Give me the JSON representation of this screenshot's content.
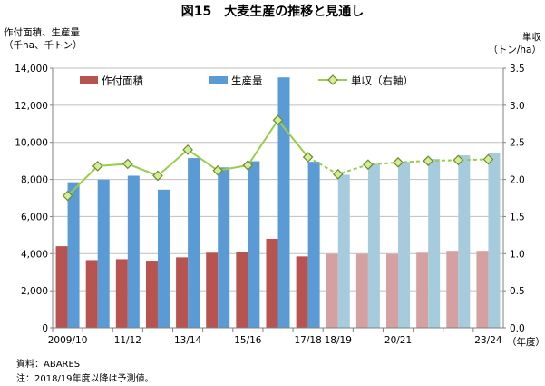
{
  "title": "図15　大麦生産の推移と見通し",
  "left_axis_title": [
    "作付面積、生産量",
    "（千ha、千トン）"
  ],
  "right_axis_title": [
    "単収",
    "（トン/ha）"
  ],
  "notes": {
    "source": "資料：ABARES",
    "forecast": "注：2018/19年度以降は予測値。"
  },
  "colors": {
    "area": "#b85450",
    "area_forecast": "#d4a0a0",
    "production": "#5b9bd5",
    "production_forecast": "#a6cbdc",
    "yield_line": "#9acd4a",
    "yield_marker_stroke": "#6b8e23",
    "yield_marker_fill": "#d6eb9e",
    "grid": "#bfbfbf"
  },
  "chart_data": {
    "type": "bar",
    "categories": [
      "2009/10",
      "2010/11",
      "2011/12",
      "2012/13",
      "2013/14",
      "2014/15",
      "2015/16",
      "2016/17",
      "2017/18",
      "2018/19",
      "2019/20",
      "2020/21",
      "2021/22",
      "2022/23",
      "2023/24"
    ],
    "x_tick_labels": [
      "2009/10",
      "",
      "11/12",
      "",
      "13/14",
      "",
      "15/16",
      "",
      "17/18",
      "18/19",
      "",
      "20/21",
      "",
      "",
      "23/24"
    ],
    "x_unit_label": "（年度）",
    "forecast_start_index": 9,
    "series": [
      {
        "name": "作付面積",
        "axis": "left",
        "kind": "bar",
        "values": [
          4400,
          3650,
          3700,
          3620,
          3800,
          4050,
          4080,
          4800,
          3850,
          3980,
          3980,
          3980,
          4050,
          4150,
          4150
        ]
      },
      {
        "name": "生産量",
        "axis": "left",
        "kind": "bar",
        "values": [
          7850,
          7990,
          8200,
          7450,
          9150,
          8650,
          8980,
          13500,
          8950,
          8250,
          8850,
          8950,
          9100,
          9300,
          9400
        ]
      },
      {
        "name": "単収（右軸）",
        "axis": "right",
        "kind": "line",
        "values": [
          1.78,
          2.18,
          2.21,
          2.05,
          2.4,
          2.12,
          2.19,
          2.8,
          2.3,
          2.07,
          2.2,
          2.23,
          2.25,
          2.26,
          2.27
        ]
      }
    ],
    "y_left": {
      "min": 0,
      "max": 14000,
      "ticks": [
        "0",
        "2,000",
        "4,000",
        "6,000",
        "8,000",
        "10,000",
        "12,000",
        "14,000"
      ]
    },
    "y_right": {
      "min": 0,
      "max": 3.5,
      "ticks": [
        "0.0",
        "0.5",
        "1.0",
        "1.5",
        "2.0",
        "2.5",
        "3.0",
        "3.5"
      ]
    },
    "grid": true,
    "legend_position": "top"
  }
}
